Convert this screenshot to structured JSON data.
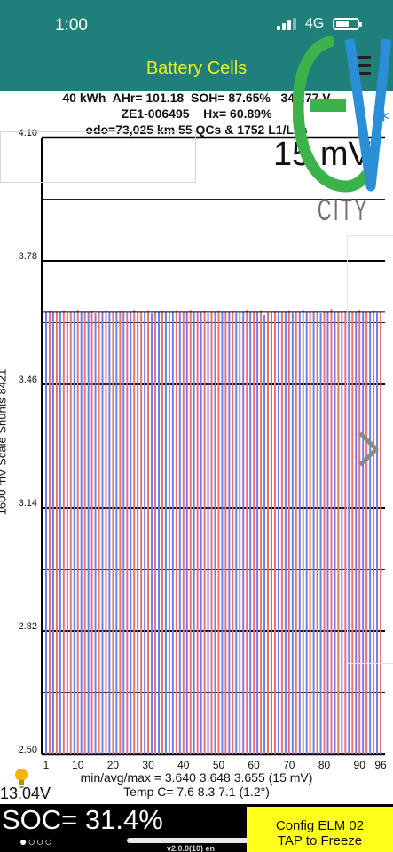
{
  "status_bar": {
    "time": "1:00",
    "network": "4G"
  },
  "header": {
    "title": "Battery Cells",
    "menu_icon": "hamburger-menu-icon"
  },
  "info": {
    "line1": "40 kWh  AHr= 101.18  SOH= 87.65%   349.77 V",
    "line2": "ZE1-006495    Hx= 60.89%",
    "line3": "odo=73,025 km 55 QCs & 1752 L1/L2s"
  },
  "logo": {
    "city_text": "CITY",
    "colors": {
      "e": "#3bb34a",
      "v": "#2b8fd8",
      "star": "#2b8fd8"
    }
  },
  "chart_overlay": {
    "range_label": "15 mV"
  },
  "chart_data": {
    "type": "bar",
    "ylabel": "1600 mV Scale   Shunts 8421",
    "ylim": [
      2.5,
      4.1
    ],
    "y_ticks": [
      "4.10",
      "3.78",
      "3.46",
      "3.14",
      "2.82",
      "2.50"
    ],
    "x_ticks": [
      "1",
      "10",
      "20",
      "30",
      "40",
      "50",
      "60",
      "70",
      "80",
      "90",
      "96"
    ],
    "cell_count": 96,
    "reference_line": 3.648,
    "series_colors": {
      "odd": "#6f7df0",
      "even": "#f07070"
    },
    "values": [
      3.648,
      3.651,
      3.646,
      3.65,
      3.647,
      3.652,
      3.645,
      3.649,
      3.648,
      3.653,
      3.646,
      3.65,
      3.647,
      3.651,
      3.644,
      3.649,
      3.648,
      3.652,
      3.646,
      3.65,
      3.647,
      3.651,
      3.645,
      3.648,
      3.648,
      3.653,
      3.646,
      3.649,
      3.647,
      3.652,
      3.644,
      3.65,
      3.648,
      3.651,
      3.646,
      3.649,
      3.647,
      3.652,
      3.645,
      3.648,
      3.648,
      3.653,
      3.646,
      3.65,
      3.647,
      3.651,
      3.644,
      3.649,
      3.648,
      3.652,
      3.646,
      3.65,
      3.647,
      3.651,
      3.645,
      3.648,
      3.648,
      3.653,
      3.646,
      3.649,
      3.647,
      3.652,
      3.64,
      3.65,
      3.648,
      3.651,
      3.646,
      3.649,
      3.647,
      3.652,
      3.645,
      3.648,
      3.648,
      3.653,
      3.646,
      3.65,
      3.647,
      3.651,
      3.644,
      3.649,
      3.648,
      3.655,
      3.646,
      3.65,
      3.647,
      3.651,
      3.645,
      3.648,
      3.648,
      3.653,
      3.646,
      3.649,
      3.647,
      3.652,
      3.645,
      3.65
    ]
  },
  "stats": {
    "minmax": "min/avg/max = 3.640 3.648 3.655  (15 mV)",
    "temp": "Temp C= 7.6  8.3  7.1  (1.2°)"
  },
  "footer": {
    "pack_voltage": "13.04V",
    "soc": "SOC= 31.4%",
    "page_dots": "●○○○",
    "version": "v2.0.0(10) en",
    "config_line1": "Config ELM  02",
    "config_line2": "TAP to Freeze"
  }
}
